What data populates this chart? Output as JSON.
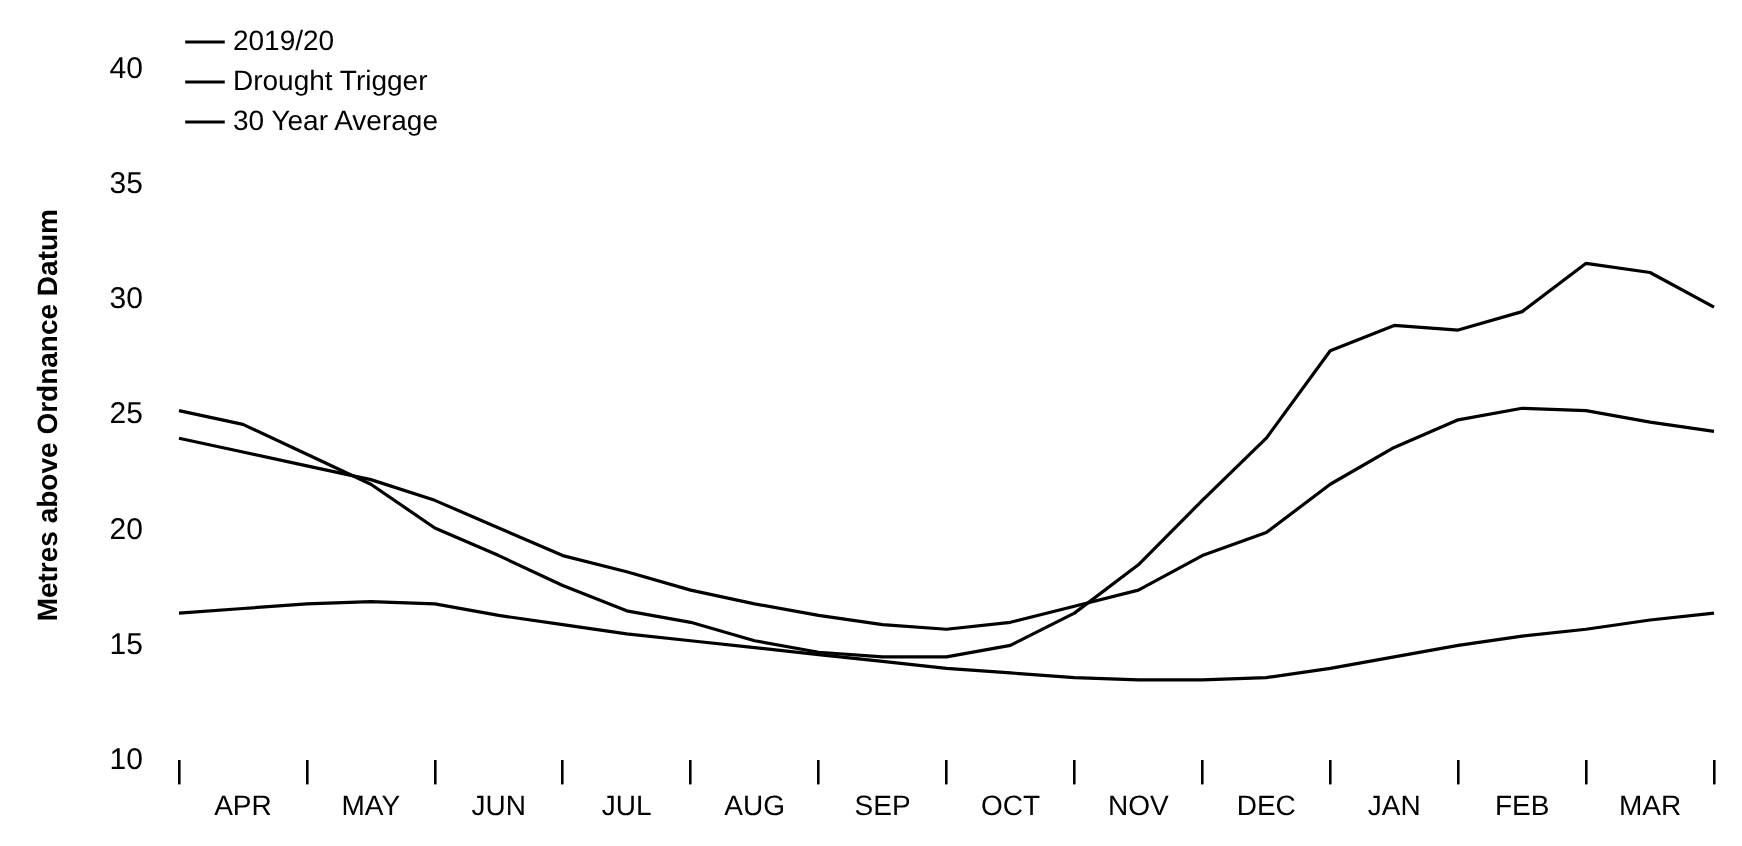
{
  "chart_data": {
    "type": "line",
    "ylabel": "Metres above Ordnance Datum",
    "categories": [
      null,
      "APR",
      null,
      "MAY",
      null,
      "JUN",
      null,
      "JUL",
      null,
      "AUG",
      null,
      "SEP",
      null,
      "OCT",
      null,
      "NOV",
      null,
      "DEC",
      null,
      "JAN",
      null,
      "FEB",
      null,
      "MAR",
      null
    ],
    "ylim": [
      10,
      40
    ],
    "yticks": [
      10,
      15,
      20,
      25,
      30,
      35,
      40
    ],
    "grid": false,
    "legend": "top left",
    "marker": "none",
    "line_style": "solid",
    "series": [
      {
        "name": "2019/20",
        "color": "#000000",
        "values": [
          25.2,
          24.6,
          23.3,
          22.0,
          20.1,
          18.9,
          17.6,
          16.5,
          16.0,
          15.2,
          14.7,
          14.5,
          14.5,
          15.0,
          16.4,
          18.5,
          21.3,
          24.0,
          27.8,
          28.9,
          28.7,
          29.5,
          31.6,
          31.2,
          29.7
        ]
      },
      {
        "name": "Drought Trigger",
        "color": "#000000",
        "values": [
          16.4,
          16.6,
          16.8,
          16.9,
          16.8,
          16.3,
          15.9,
          15.5,
          15.2,
          14.9,
          14.6,
          14.3,
          14.0,
          13.8,
          13.6,
          13.5,
          13.5,
          13.6,
          14.0,
          14.5,
          15.0,
          15.4,
          15.7,
          16.1,
          16.4
        ]
      },
      {
        "name": "30 Year Average",
        "color": "#000000",
        "values": [
          24.0,
          23.4,
          22.8,
          22.2,
          21.3,
          20.1,
          18.9,
          18.2,
          17.4,
          16.8,
          16.3,
          15.9,
          15.7,
          16.0,
          16.7,
          17.4,
          18.9,
          19.9,
          22.0,
          23.6,
          24.8,
          25.3,
          25.2,
          24.7,
          24.3
        ]
      }
    ]
  }
}
